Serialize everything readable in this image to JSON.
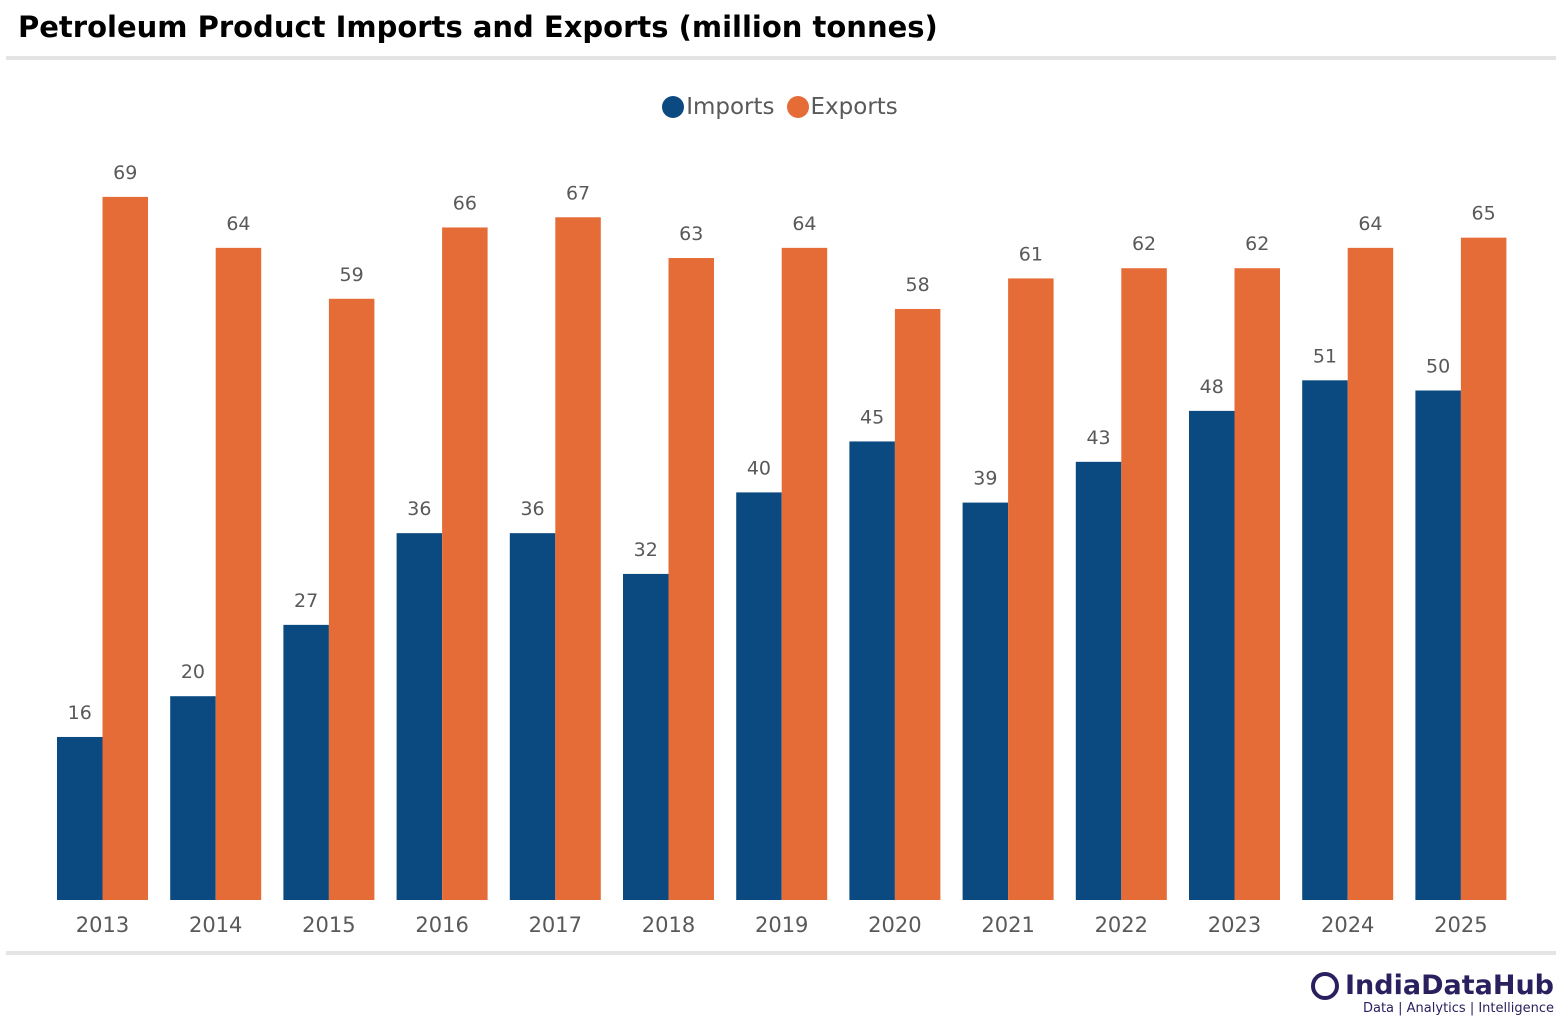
{
  "chart_data": {
    "type": "bar",
    "title": "Petroleum Product Imports and Exports (million tonnes)",
    "categories": [
      "2013",
      "2014",
      "2015",
      "2016",
      "2017",
      "2018",
      "2019",
      "2020",
      "2021",
      "2022",
      "2023",
      "2024",
      "2025"
    ],
    "series": [
      {
        "name": "Imports",
        "color": "#0b4a80",
        "values": [
          16,
          20,
          27,
          36,
          36,
          32,
          40,
          45,
          39,
          43,
          48,
          51,
          50
        ]
      },
      {
        "name": "Exports",
        "color": "#e66c37",
        "values": [
          69,
          64,
          59,
          66,
          67,
          63,
          64,
          58,
          61,
          62,
          62,
          64,
          65
        ]
      }
    ],
    "xlabel": "",
    "ylabel": "",
    "ylim": [
      0,
      70
    ],
    "grid": false,
    "legend": "top-center"
  },
  "logo": {
    "name": "IndiaDataHub",
    "tagline": "Data | Analytics | Intelligence"
  }
}
